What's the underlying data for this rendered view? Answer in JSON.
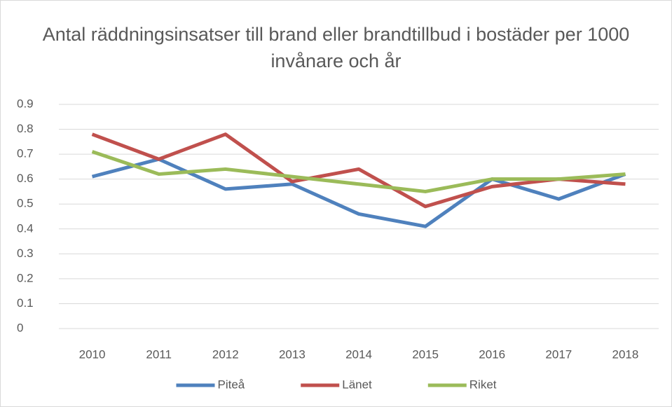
{
  "chart_data": {
    "type": "line",
    "title": "Antal räddningsinsatser till brand eller brandtillbud i bostäder per 1000 invånare och år",
    "categories": [
      "2010",
      "2011",
      "2012",
      "2013",
      "2014",
      "2015",
      "2016",
      "2017",
      "2018"
    ],
    "series": [
      {
        "name": "Piteå",
        "color": "#4f81bd",
        "values": [
          0.61,
          0.68,
          0.56,
          0.58,
          0.46,
          0.41,
          0.6,
          0.52,
          0.62
        ]
      },
      {
        "name": "Länet",
        "color": "#c0504d",
        "values": [
          0.78,
          0.68,
          0.78,
          0.59,
          0.64,
          0.49,
          0.57,
          0.6,
          0.58
        ]
      },
      {
        "name": "Riket",
        "color": "#9bbb59",
        "values": [
          0.71,
          0.62,
          0.64,
          0.61,
          0.58,
          0.55,
          0.6,
          0.6,
          0.62
        ]
      }
    ],
    "ylim": [
      0,
      0.9
    ],
    "yticks": [
      0,
      0.1,
      0.2,
      0.3,
      0.4,
      0.5,
      0.6,
      0.7,
      0.8,
      0.9
    ],
    "grid": true,
    "legend": "bottom"
  }
}
